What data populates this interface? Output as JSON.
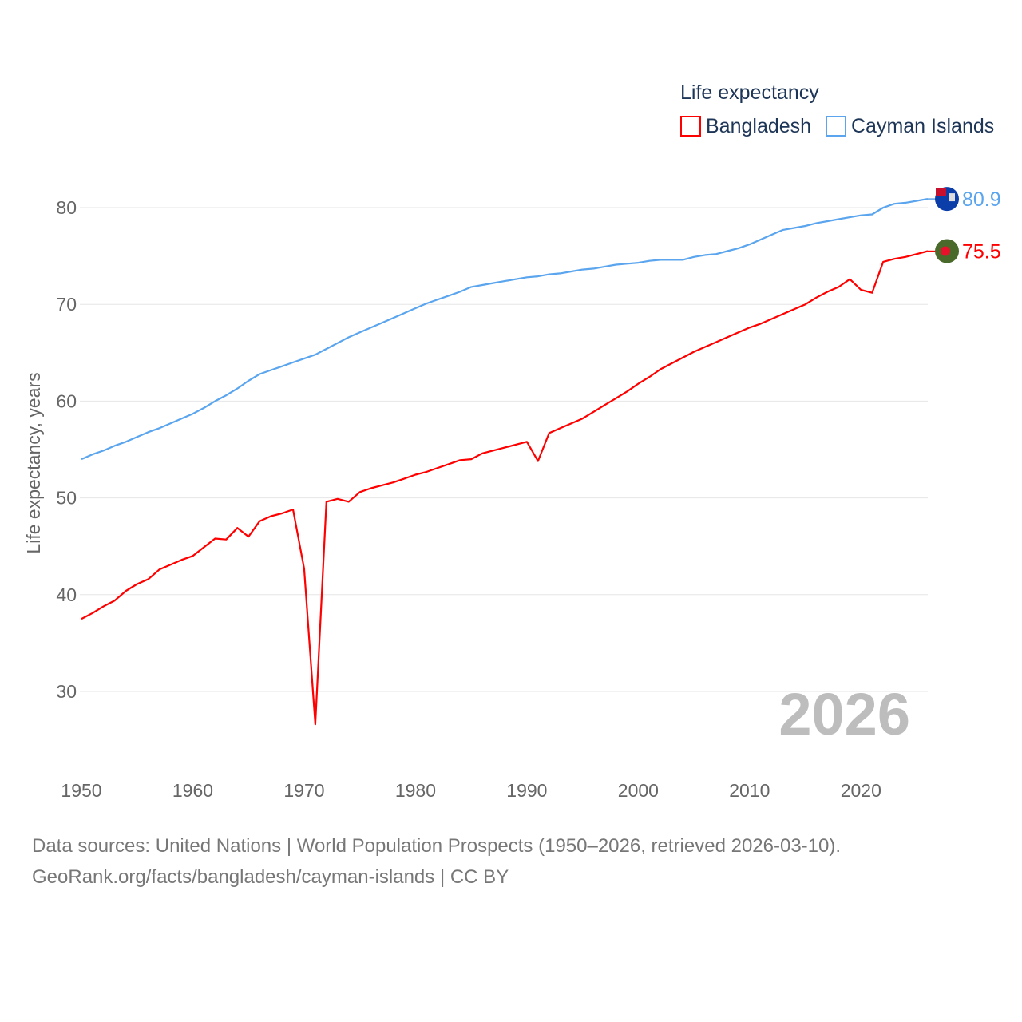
{
  "chart_data": {
    "type": "line",
    "title": "",
    "legend_title": "Life expectancy",
    "ylabel": "Life expectancy, years",
    "xlabel": "",
    "xlim": [
      1950,
      2026
    ],
    "ylim": [
      30,
      80
    ],
    "yticks": [
      30,
      40,
      50,
      60,
      70,
      80
    ],
    "xticks": [
      1950,
      1960,
      1970,
      1980,
      1990,
      2000,
      2010,
      2020
    ],
    "grid": true,
    "legend_position": "top-right",
    "year_label": "2026",
    "x": [
      1950,
      1951,
      1952,
      1953,
      1954,
      1955,
      1956,
      1957,
      1958,
      1959,
      1960,
      1961,
      1962,
      1963,
      1964,
      1965,
      1966,
      1967,
      1968,
      1969,
      1970,
      1971,
      1972,
      1973,
      1974,
      1975,
      1976,
      1977,
      1978,
      1979,
      1980,
      1981,
      1982,
      1983,
      1984,
      1985,
      1986,
      1987,
      1988,
      1989,
      1990,
      1991,
      1992,
      1993,
      1994,
      1995,
      1996,
      1997,
      1998,
      1999,
      2000,
      2001,
      2002,
      2003,
      2004,
      2005,
      2006,
      2007,
      2008,
      2009,
      2010,
      2011,
      2012,
      2013,
      2014,
      2015,
      2016,
      2017,
      2018,
      2019,
      2020,
      2021,
      2022,
      2023,
      2024,
      2025,
      2026
    ],
    "series": [
      {
        "name": "Bangladesh",
        "color": "#ff0000",
        "end_label": "75.5",
        "values": [
          37.5,
          38.1,
          38.8,
          39.4,
          40.4,
          41.1,
          41.6,
          42.6,
          43.1,
          43.6,
          44.0,
          44.9,
          45.8,
          45.7,
          46.9,
          46.0,
          47.6,
          48.1,
          48.4,
          48.8,
          42.7,
          26.6,
          49.6,
          49.9,
          49.6,
          50.6,
          51.0,
          51.3,
          51.6,
          52.0,
          52.4,
          52.7,
          53.1,
          53.5,
          53.9,
          54.0,
          54.6,
          54.9,
          55.2,
          55.5,
          55.8,
          53.8,
          56.7,
          57.2,
          57.7,
          58.2,
          58.9,
          59.6,
          60.3,
          61.0,
          61.8,
          62.5,
          63.3,
          63.9,
          64.5,
          65.1,
          65.6,
          66.1,
          66.6,
          67.1,
          67.6,
          68.0,
          68.5,
          69.0,
          69.5,
          70.0,
          70.7,
          71.3,
          71.8,
          72.6,
          71.5,
          71.2,
          74.4,
          74.7,
          74.9,
          75.2,
          75.5
        ]
      },
      {
        "name": "Cayman Islands",
        "color": "#5aa5ee",
        "end_label": "80.9",
        "values": [
          54.0,
          54.5,
          54.9,
          55.4,
          55.8,
          56.3,
          56.8,
          57.2,
          57.7,
          58.2,
          58.7,
          59.3,
          60.0,
          60.6,
          61.3,
          62.1,
          62.8,
          63.2,
          63.6,
          64.0,
          64.4,
          64.8,
          65.4,
          66.0,
          66.6,
          67.1,
          67.6,
          68.1,
          68.6,
          69.1,
          69.6,
          70.1,
          70.5,
          70.9,
          71.3,
          71.8,
          72.0,
          72.2,
          72.4,
          72.6,
          72.8,
          72.9,
          73.1,
          73.2,
          73.4,
          73.6,
          73.7,
          73.9,
          74.1,
          74.2,
          74.3,
          74.5,
          74.6,
          74.6,
          74.6,
          74.9,
          75.1,
          75.2,
          75.5,
          75.8,
          76.2,
          76.7,
          77.2,
          77.7,
          77.9,
          78.1,
          78.4,
          78.6,
          78.8,
          79.0,
          79.2,
          79.3,
          80.0,
          80.4,
          80.5,
          80.7,
          80.9
        ]
      }
    ]
  },
  "footer": {
    "line1": "Data sources: United Nations | World Population Prospects (1950–2026, retrieved 2026-03-10).",
    "line2": "GeoRank.org/facts/bangladesh/cayman-islands | CC BY"
  }
}
